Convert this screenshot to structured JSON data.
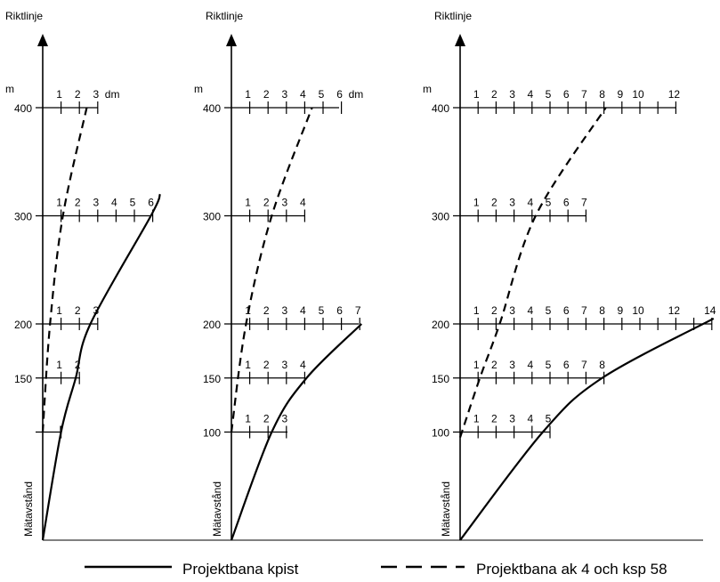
{
  "panels": [
    {
      "title": "Riktlinje",
      "y_unit": "m",
      "x_unit": "dm",
      "vertical_label": "Mätavstånd",
      "rows": [
        {
          "distance": 400,
          "label": "400",
          "ticks": [
            "1",
            "2",
            "3"
          ]
        },
        {
          "distance": 300,
          "label": "300",
          "ticks": [
            "1",
            "2",
            "3",
            "4",
            "5",
            "6"
          ]
        },
        {
          "distance": 200,
          "label": "200",
          "ticks": [
            "1",
            "2",
            "3"
          ]
        },
        {
          "distance": 150,
          "label": "150",
          "ticks": [
            "1",
            "2"
          ]
        },
        {
          "distance": 100,
          "label": "",
          "ticks": []
        }
      ],
      "solid_curve": [
        [
          0,
          0
        ],
        [
          1,
          100
        ],
        [
          1.8,
          150
        ],
        [
          2.6,
          200
        ],
        [
          5.9,
          300
        ],
        [
          6.4,
          320
        ]
      ],
      "dashed_curve": [
        [
          0,
          100
        ],
        [
          0.4,
          200
        ],
        [
          1.1,
          300
        ],
        [
          2.4,
          400
        ]
      ]
    },
    {
      "title": "Riktlinje",
      "y_unit": "m",
      "x_unit": "dm",
      "vertical_label": "Mätavstånd",
      "rows": [
        {
          "distance": 400,
          "label": "400",
          "ticks": [
            "1",
            "2",
            "3",
            "4",
            "5",
            "6"
          ]
        },
        {
          "distance": 300,
          "label": "300",
          "ticks": [
            "1",
            "2",
            "3",
            "4"
          ]
        },
        {
          "distance": 200,
          "label": "200",
          "ticks": [
            "1",
            "2",
            "3",
            "4",
            "5",
            "6",
            "7"
          ]
        },
        {
          "distance": 150,
          "label": "150",
          "ticks": [
            "1",
            "2",
            "3",
            "4"
          ]
        },
        {
          "distance": 100,
          "label": "100",
          "ticks": [
            "1",
            "2",
            "3"
          ]
        }
      ],
      "solid_curve": [
        [
          0,
          0
        ],
        [
          2.2,
          100
        ],
        [
          4.1,
          150
        ],
        [
          7.1,
          200
        ]
      ],
      "dashed_curve": [
        [
          0,
          100
        ],
        [
          0.8,
          200
        ],
        [
          2.2,
          300
        ],
        [
          4.4,
          400
        ]
      ]
    },
    {
      "title": "Riktlinje",
      "y_unit": "m",
      "x_unit": "",
      "vertical_label": "Mätavstånd",
      "rows": [
        {
          "distance": 400,
          "label": "400",
          "ticks": [
            "1",
            "2",
            "3",
            "4",
            "5",
            "6",
            "7",
            "8",
            "9",
            "10",
            "",
            "12"
          ]
        },
        {
          "distance": 300,
          "label": "300",
          "ticks": [
            "1",
            "2",
            "3",
            "4",
            "5",
            "6",
            "7"
          ]
        },
        {
          "distance": 200,
          "label": "200",
          "ticks": [
            "1",
            "2",
            "3",
            "4",
            "5",
            "6",
            "7",
            "8",
            "9",
            "10",
            "",
            "12",
            "",
            "14"
          ]
        },
        {
          "distance": 150,
          "label": "150",
          "ticks": [
            "1",
            "2",
            "3",
            "4",
            "5",
            "6",
            "7",
            "8"
          ]
        },
        {
          "distance": 100,
          "label": "100",
          "ticks": [
            "1",
            "2",
            "3",
            "4",
            "5"
          ]
        }
      ],
      "solid_curve": [
        [
          0,
          0
        ],
        [
          4.6,
          100
        ],
        [
          7.9,
          150
        ],
        [
          14.1,
          205
        ]
      ],
      "dashed_curve": [
        [
          0,
          95
        ],
        [
          1.1,
          150
        ],
        [
          2.2,
          200
        ],
        [
          4.2,
          300
        ],
        [
          8.1,
          400
        ]
      ]
    }
  ],
  "legend": {
    "solid_label": "Projektbana kpist",
    "dashed_label": "Projektbana ak 4 och ksp 58"
  },
  "colors": {
    "ink": "#000000",
    "background": "#ffffff"
  }
}
